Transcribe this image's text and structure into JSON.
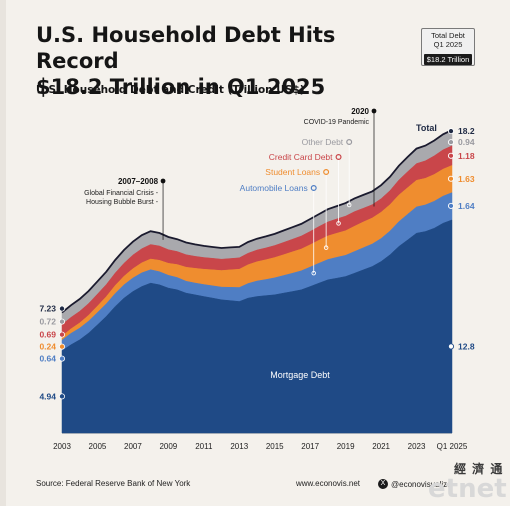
{
  "header": {
    "title_line1": "U.S. Household Debt Hits Record",
    "title_line2": "$18.2 Trillion in Q1 2025",
    "subtitle": "U.S. Household Debt and Credit (Trillion US$)"
  },
  "badge": {
    "line1": "Total Debt",
    "line2": "Q1 2025",
    "value": "$18.2 Trillion"
  },
  "footer": {
    "source": "Source: Federal Reserve Bank of New York",
    "site": "www.econovis.net",
    "handle": "@econovisualize"
  },
  "watermark": {
    "cn": "經 濟 通",
    "brand": "etnet"
  },
  "colors": {
    "mortgage": "#1f4a86",
    "auto": "#4f7ec4",
    "student": "#ef8d2f",
    "credit": "#c9464a",
    "other": "#a9a9ad",
    "label": "#1f4a86",
    "background": "#f4f1ec"
  },
  "chart_data": {
    "type": "area",
    "stacked": true,
    "x": [
      2003,
      2003.5,
      2004,
      2004.5,
      2005,
      2005.5,
      2006,
      2006.5,
      2007,
      2007.5,
      2008,
      2008.5,
      2009,
      2009.5,
      2010,
      2010.5,
      2011,
      2011.5,
      2012,
      2012.5,
      2013,
      2013.5,
      2014,
      2014.5,
      2015,
      2015.5,
      2016,
      2016.5,
      2017,
      2017.5,
      2018,
      2018.5,
      2019,
      2019.5,
      2020,
      2020.5,
      2021,
      2021.5,
      2022,
      2022.5,
      2023,
      2023.5,
      2024,
      2024.5,
      2025
    ],
    "xlim": [
      2003,
      2025
    ],
    "ylim": [
      0,
      20
    ],
    "xticks": [
      {
        "value": 2003,
        "label": "2003"
      },
      {
        "value": 2005,
        "label": "2005"
      },
      {
        "value": 2007,
        "label": "2007"
      },
      {
        "value": 2009,
        "label": "2009"
      },
      {
        "value": 2011,
        "label": "2011"
      },
      {
        "value": 2013,
        "label": "2013"
      },
      {
        "value": 2015,
        "label": "2015"
      },
      {
        "value": 2017,
        "label": "2017"
      },
      {
        "value": 2019,
        "label": "2019"
      },
      {
        "value": 2021,
        "label": "2021"
      },
      {
        "value": 2023,
        "label": "2023"
      },
      {
        "value": 2025,
        "label": "Q1 2025"
      }
    ],
    "series": [
      {
        "key": "mortgage",
        "name": "Mortgage Debt",
        "color": "#1f4a86",
        "values": [
          4.94,
          5.3,
          5.6,
          6.0,
          6.5,
          7.0,
          7.6,
          8.1,
          8.5,
          8.8,
          9.0,
          8.9,
          8.7,
          8.6,
          8.4,
          8.3,
          8.2,
          8.1,
          8.0,
          7.95,
          7.9,
          8.1,
          8.2,
          8.25,
          8.3,
          8.4,
          8.5,
          8.6,
          8.8,
          9.0,
          9.2,
          9.3,
          9.4,
          9.6,
          9.8,
          10.0,
          10.3,
          10.7,
          11.2,
          11.6,
          12.0,
          12.1,
          12.3,
          12.6,
          12.8
        ]
      },
      {
        "key": "auto",
        "name": "Automobile Loans",
        "color": "#4f7ec4",
        "values": [
          0.64,
          0.68,
          0.7,
          0.72,
          0.74,
          0.76,
          0.78,
          0.8,
          0.81,
          0.82,
          0.81,
          0.79,
          0.77,
          0.74,
          0.72,
          0.71,
          0.72,
          0.74,
          0.76,
          0.8,
          0.84,
          0.88,
          0.93,
          0.97,
          1.02,
          1.06,
          1.1,
          1.14,
          1.17,
          1.2,
          1.22,
          1.25,
          1.27,
          1.3,
          1.33,
          1.35,
          1.38,
          1.43,
          1.49,
          1.54,
          1.58,
          1.6,
          1.62,
          1.63,
          1.64
        ]
      },
      {
        "key": "student",
        "name": "Student Loans",
        "color": "#ef8d2f",
        "values": [
          0.24,
          0.27,
          0.31,
          0.35,
          0.39,
          0.43,
          0.48,
          0.52,
          0.56,
          0.6,
          0.64,
          0.68,
          0.72,
          0.78,
          0.84,
          0.88,
          0.92,
          0.96,
          1.0,
          1.05,
          1.1,
          1.13,
          1.16,
          1.19,
          1.22,
          1.25,
          1.28,
          1.31,
          1.34,
          1.38,
          1.42,
          1.45,
          1.48,
          1.52,
          1.55,
          1.56,
          1.58,
          1.59,
          1.6,
          1.6,
          1.6,
          1.6,
          1.61,
          1.62,
          1.63
        ]
      },
      {
        "key": "credit",
        "name": "Credit Card Debt",
        "color": "#c9464a",
        "values": [
          0.69,
          0.69,
          0.7,
          0.71,
          0.72,
          0.73,
          0.75,
          0.78,
          0.82,
          0.85,
          0.87,
          0.86,
          0.82,
          0.78,
          0.75,
          0.72,
          0.7,
          0.69,
          0.68,
          0.68,
          0.68,
          0.69,
          0.7,
          0.71,
          0.72,
          0.74,
          0.76,
          0.78,
          0.8,
          0.82,
          0.84,
          0.86,
          0.88,
          0.88,
          0.82,
          0.8,
          0.81,
          0.84,
          0.9,
          0.96,
          1.0,
          1.05,
          1.12,
          1.16,
          1.18
        ]
      },
      {
        "key": "other",
        "name": "Other Debt",
        "color": "#a9a9ad",
        "values": [
          0.72,
          0.73,
          0.74,
          0.75,
          0.76,
          0.77,
          0.78,
          0.79,
          0.8,
          0.81,
          0.8,
          0.78,
          0.76,
          0.74,
          0.73,
          0.72,
          0.7,
          0.68,
          0.67,
          0.67,
          0.66,
          0.67,
          0.68,
          0.69,
          0.7,
          0.71,
          0.72,
          0.73,
          0.74,
          0.75,
          0.76,
          0.77,
          0.78,
          0.79,
          0.8,
          0.8,
          0.81,
          0.83,
          0.86,
          0.88,
          0.9,
          0.91,
          0.92,
          0.93,
          0.94
        ]
      }
    ],
    "start_labels": [
      {
        "key": "total",
        "value": "7.23"
      },
      {
        "key": "other",
        "value": "0.72"
      },
      {
        "key": "credit",
        "value": "0.69"
      },
      {
        "key": "student",
        "value": "0.24"
      },
      {
        "key": "auto",
        "value": "0.64"
      },
      {
        "key": "mortgage",
        "value": "4.94"
      }
    ],
    "end_labels": [
      {
        "key": "total",
        "value": "18.2"
      },
      {
        "key": "other",
        "value": "0.94"
      },
      {
        "key": "credit",
        "value": "1.18"
      },
      {
        "key": "student",
        "value": "1.63"
      },
      {
        "key": "auto",
        "value": "1.64"
      },
      {
        "key": "mortgage",
        "value": "12.8"
      }
    ],
    "total_label": "Total",
    "mortgage_area_label": "Mortgage Debt",
    "series_callouts": [
      {
        "key": "other",
        "text": "Other Debt",
        "x": 2019.2
      },
      {
        "key": "credit",
        "text": "Credit Card Debt",
        "x": 2018.6
      },
      {
        "key": "student",
        "text": "Student Loans",
        "x": 2017.9
      },
      {
        "key": "auto",
        "text": "Automobile Loans",
        "x": 2017.2
      }
    ],
    "annotations": [
      {
        "year_label": "2007–2008",
        "lines": [
          "Global Financial Crisis -",
          "Housing Bubble Burst -"
        ],
        "x": 2008.7,
        "y": 12.3
      },
      {
        "year_label": "2020",
        "lines": [
          "COVID-19 Pandemic"
        ],
        "x": 2020,
        "y": 13.4
      }
    ]
  }
}
